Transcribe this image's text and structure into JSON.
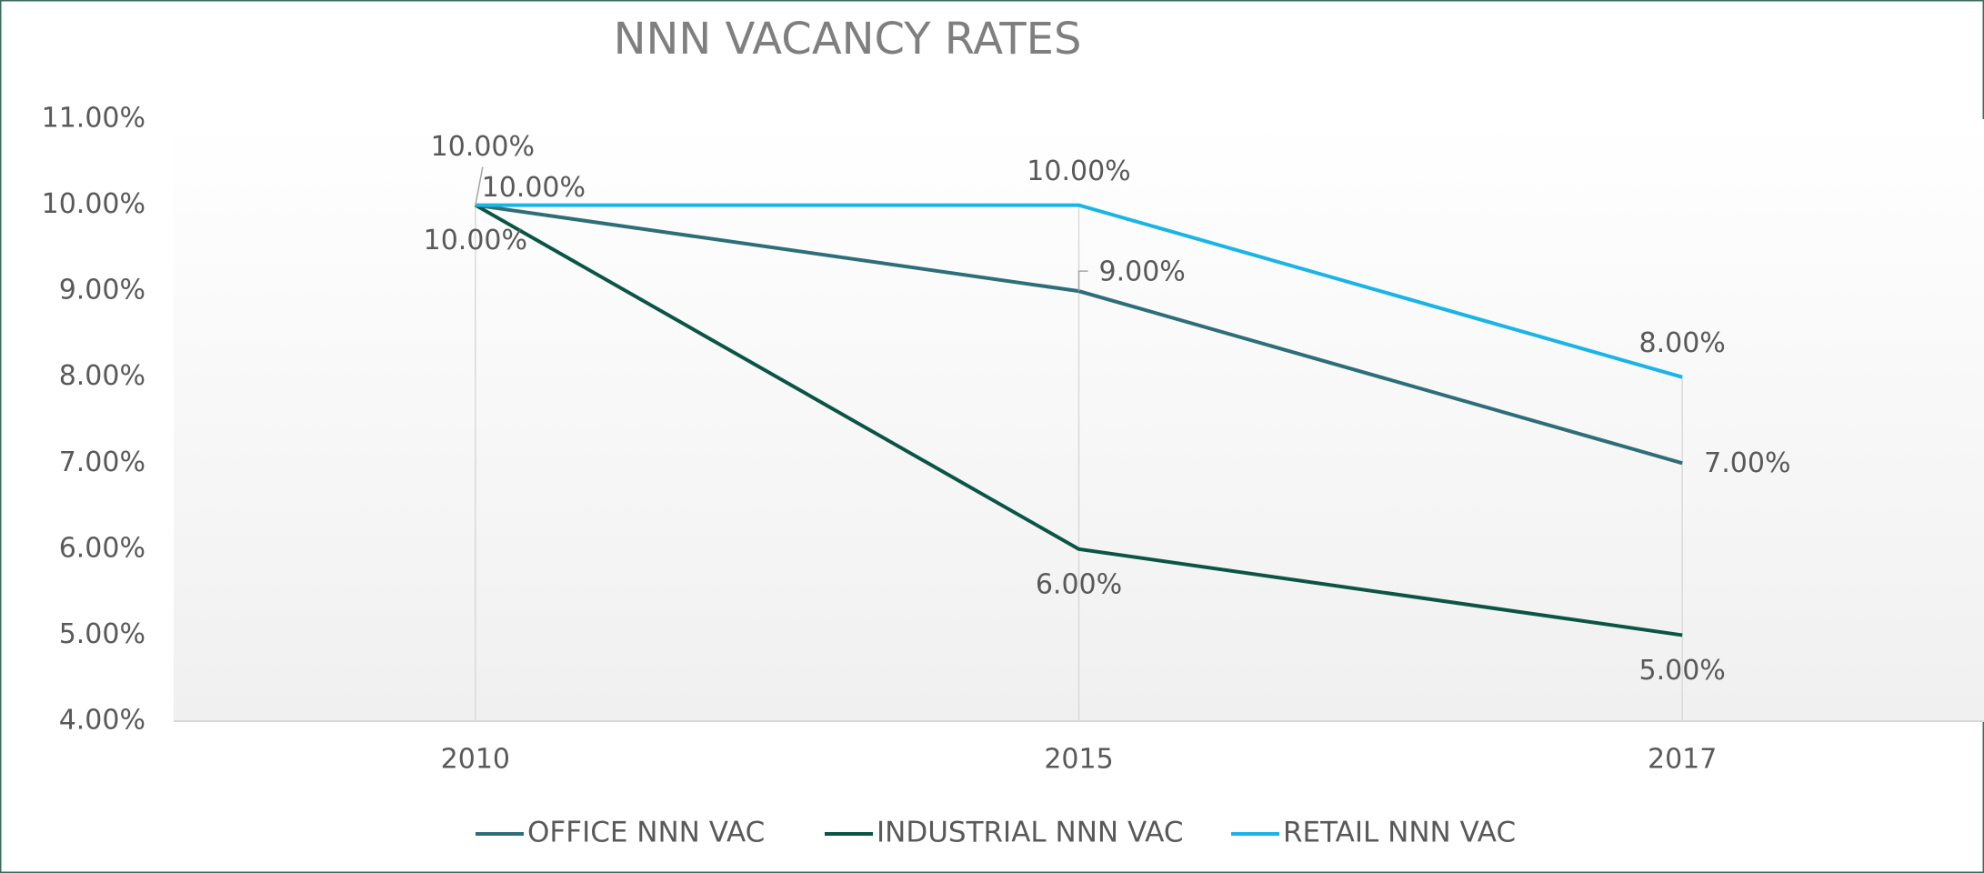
{
  "chart_data": {
    "type": "line",
    "title": "NNN VACANCY RATES",
    "categories": [
      "2010",
      "2015",
      "2017"
    ],
    "series": [
      {
        "name": "OFFICE NNN VAC",
        "color": "#2e6e78",
        "values": [
          10,
          9,
          7
        ],
        "value_labels": [
          "10.00%",
          "9.00%",
          "7.00%"
        ]
      },
      {
        "name": "INDUSTRIAL NNN VAC",
        "color": "#0b5545",
        "values": [
          10,
          6,
          5
        ],
        "value_labels": [
          "10.00%",
          "6.00%",
          "5.00%"
        ]
      },
      {
        "name": "RETAIL NNN VAC",
        "color": "#1ab4e6",
        "values": [
          10,
          10,
          8
        ],
        "value_labels": [
          "10.00%",
          "10.00%",
          "8.00%"
        ]
      }
    ],
    "ylim": [
      4,
      11
    ],
    "yticks": [
      {
        "value": 4,
        "label": "4.00%"
      },
      {
        "value": 5,
        "label": "5.00%"
      },
      {
        "value": 6,
        "label": "6.00%"
      },
      {
        "value": 7,
        "label": "7.00%"
      },
      {
        "value": 8,
        "label": "8.00%"
      },
      {
        "value": 9,
        "label": "9.00%"
      },
      {
        "value": 10,
        "label": "10.00%"
      },
      {
        "value": 11,
        "label": "11.00%"
      }
    ],
    "legend": "bottom"
  }
}
